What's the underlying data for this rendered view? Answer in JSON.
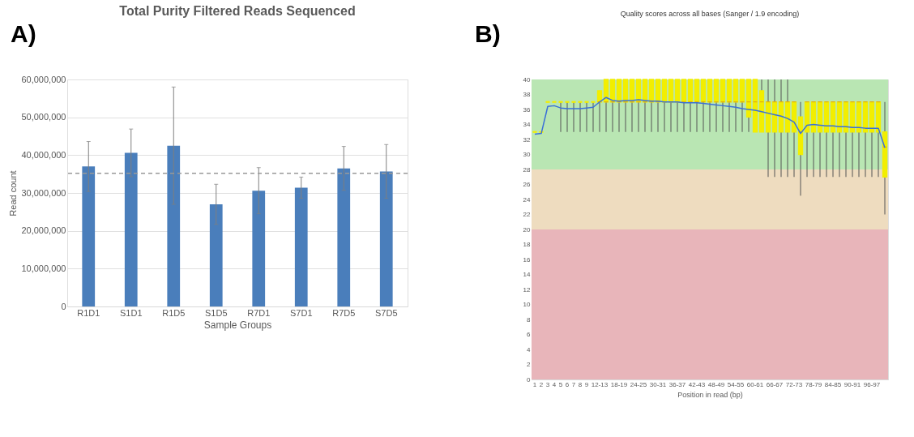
{
  "chart_data": [
    {
      "type": "bar",
      "title": "Total Purity Filtered Reads Sequenced",
      "xlabel": "Sample Groups",
      "ylabel": "Read count",
      "annotations": [
        "A)"
      ],
      "categories": [
        "R1D1",
        "S1D1",
        "R1D5",
        "S1D5",
        "R7D1",
        "S7D1",
        "R7D5",
        "S7D5"
      ],
      "values": [
        37000000,
        40600000,
        42500000,
        27000000,
        30600000,
        31400000,
        36500000,
        35700000
      ],
      "errors": [
        6600000,
        6300000,
        15500000,
        5300000,
        6100000,
        2800000,
        5800000,
        7100000
      ],
      "color": "#4a7ebb",
      "ylim": [
        0,
        60000000
      ],
      "yticks": [
        0,
        {
          "value": 10000000,
          "label": "10,000,000"
        },
        {
          "value": 20000000,
          "label": "20,000,000"
        },
        {
          "value": 30000000,
          "label": "30,000,000"
        },
        {
          "value": 40000000,
          "label": "40,000,000"
        },
        {
          "value": 50000000,
          "label": "50,000,000"
        },
        {
          "value": 60000000,
          "label": "60,000,000"
        }
      ],
      "ref_lines": [
        {
          "axis": "y",
          "value": 35200000,
          "color": "#999999",
          "line_style": "dashed"
        }
      ],
      "grid": "y"
    },
    {
      "type": "box",
      "title": "Quality scores across all bases (Sanger / 1.9 encoding)",
      "xlabel": "Position in read (bp)",
      "annotations": [
        "B)"
      ],
      "categories": [
        "1",
        "2",
        "3",
        "4",
        "5",
        "6",
        "7",
        "8",
        "9",
        null,
        "12-13",
        null,
        null,
        "18-19",
        null,
        null,
        "24-25",
        null,
        null,
        "30-31",
        null,
        null,
        "36-37",
        null,
        null,
        "42-43",
        null,
        null,
        "48-49",
        null,
        null,
        "54-55",
        null,
        null,
        "60-61",
        null,
        null,
        "66-67",
        null,
        null,
        "72-73",
        null,
        null,
        "78-79",
        null,
        null,
        "84-85",
        null,
        null,
        "90-91",
        null,
        null,
        "96-97",
        null,
        null
      ],
      "series": [
        {
          "type": "box",
          "color": "#f2ee00",
          "boxes": [
            {
              "low": 33,
              "q1": 33,
              "median": 33,
              "q3": 33,
              "high": 33
            },
            {
              "low": 33,
              "q1": 33,
              "median": 33,
              "q3": 33,
              "high": 33
            },
            {
              "low": 37,
              "q1": 37,
              "median": 37,
              "q3": 37,
              "high": 37
            },
            {
              "low": 37,
              "q1": 37,
              "median": 37,
              "q3": 37,
              "high": 37
            },
            {
              "low": 33,
              "q1": 37,
              "median": 37,
              "q3": 37,
              "high": 37
            },
            {
              "low": 33,
              "q1": 37,
              "median": 37,
              "q3": 37,
              "high": 37
            },
            {
              "low": 33,
              "q1": 37,
              "median": 37,
              "q3": 37,
              "high": 37
            },
            {
              "low": 33,
              "q1": 37,
              "median": 37,
              "q3": 37,
              "high": 37
            },
            {
              "low": 33,
              "q1": 37,
              "median": 37,
              "q3": 37,
              "high": 37
            },
            {
              "low": 33,
              "q1": 37,
              "median": 37,
              "q3": 37,
              "high": 37
            },
            {
              "low": 33,
              "q1": 37,
              "median": 37,
              "q3": 38.5,
              "high": 38.5
            },
            {
              "low": 33,
              "q1": 37,
              "median": 37,
              "q3": 40,
              "high": 40
            },
            {
              "low": 33,
              "q1": 37,
              "median": 37,
              "q3": 40,
              "high": 40
            },
            {
              "low": 33,
              "q1": 37,
              "median": 37,
              "q3": 40,
              "high": 40
            },
            {
              "low": 33,
              "q1": 37,
              "median": 37,
              "q3": 40,
              "high": 40
            },
            {
              "low": 33,
              "q1": 37,
              "median": 37,
              "q3": 40,
              "high": 40
            },
            {
              "low": 33,
              "q1": 37,
              "median": 37,
              "q3": 40,
              "high": 40
            },
            {
              "low": 33,
              "q1": 37,
              "median": 37,
              "q3": 40,
              "high": 40
            },
            {
              "low": 33,
              "q1": 37,
              "median": 37,
              "q3": 40,
              "high": 40
            },
            {
              "low": 33,
              "q1": 37,
              "median": 37,
              "q3": 40,
              "high": 40
            },
            {
              "low": 33,
              "q1": 37,
              "median": 37,
              "q3": 40,
              "high": 40
            },
            {
              "low": 33,
              "q1": 37,
              "median": 37,
              "q3": 40,
              "high": 40
            },
            {
              "low": 33,
              "q1": 37,
              "median": 37,
              "q3": 40,
              "high": 40
            },
            {
              "low": 33,
              "q1": 37,
              "median": 37,
              "q3": 40,
              "high": 40
            },
            {
              "low": 33,
              "q1": 37,
              "median": 37,
              "q3": 40,
              "high": 40
            },
            {
              "low": 33,
              "q1": 37,
              "median": 37,
              "q3": 40,
              "high": 40
            },
            {
              "low": 33,
              "q1": 37,
              "median": 37,
              "q3": 40,
              "high": 40
            },
            {
              "low": 33,
              "q1": 37,
              "median": 37,
              "q3": 40,
              "high": 40
            },
            {
              "low": 33,
              "q1": 37,
              "median": 37,
              "q3": 40,
              "high": 40
            },
            {
              "low": 33,
              "q1": 37,
              "median": 37,
              "q3": 40,
              "high": 40
            },
            {
              "low": 33,
              "q1": 37,
              "median": 37,
              "q3": 40,
              "high": 40
            },
            {
              "low": 33,
              "q1": 37,
              "median": 37,
              "q3": 40,
              "high": 40
            },
            {
              "low": 33,
              "q1": 37,
              "median": 37,
              "q3": 40,
              "high": 40
            },
            {
              "low": 33,
              "q1": 35,
              "median": 37,
              "q3": 40,
              "high": 40
            },
            {
              "low": 33,
              "q1": 33,
              "median": 37,
              "q3": 40,
              "high": 40
            },
            {
              "low": 33,
              "q1": 33,
              "median": 37,
              "q3": 38.5,
              "high": 40
            },
            {
              "low": 27,
              "q1": 33,
              "median": 37,
              "q3": 37,
              "high": 40
            },
            {
              "low": 27,
              "q1": 33,
              "median": 37,
              "q3": 37,
              "high": 40
            },
            {
              "low": 27,
              "q1": 33,
              "median": 37,
              "q3": 37,
              "high": 40
            },
            {
              "low": 27,
              "q1": 33,
              "median": 37,
              "q3": 37,
              "high": 40
            },
            {
              "low": 27,
              "q1": 33,
              "median": 37,
              "q3": 37,
              "high": 37
            },
            {
              "low": 24.5,
              "q1": 30,
              "median": 33,
              "q3": 35,
              "high": 37
            },
            {
              "low": 27,
              "q1": 33,
              "median": 37,
              "q3": 37,
              "high": 37
            },
            {
              "low": 27,
              "q1": 33,
              "median": 37,
              "q3": 37,
              "high": 37
            },
            {
              "low": 27,
              "q1": 33,
              "median": 37,
              "q3": 37,
              "high": 37
            },
            {
              "low": 27,
              "q1": 33,
              "median": 37,
              "q3": 37,
              "high": 37
            },
            {
              "low": 27,
              "q1": 33,
              "median": 37,
              "q3": 37,
              "high": 37
            },
            {
              "low": 27,
              "q1": 33,
              "median": 37,
              "q3": 37,
              "high": 37
            },
            {
              "low": 27,
              "q1": 33,
              "median": 37,
              "q3": 37,
              "high": 37
            },
            {
              "low": 27,
              "q1": 33,
              "median": 37,
              "q3": 37,
              "high": 37
            },
            {
              "low": 27,
              "q1": 33,
              "median": 37,
              "q3": 37,
              "high": 37
            },
            {
              "low": 27,
              "q1": 33,
              "median": 37,
              "q3": 37,
              "high": 37
            },
            {
              "low": 27,
              "q1": 33,
              "median": 37,
              "q3": 37,
              "high": 37
            },
            {
              "low": 27,
              "q1": 33,
              "median": 37,
              "q3": 37,
              "high": 37
            },
            {
              "low": 22,
              "q1": 27,
              "median": 31,
              "q3": 33,
              "high": 37
            }
          ]
        },
        {
          "type": "line",
          "color": "#3a6fd8",
          "values": [
            32.7,
            32.8,
            36.4,
            36.5,
            36.2,
            36.1,
            36.1,
            36.1,
            36.2,
            36.3,
            37.0,
            37.6,
            37.2,
            37.1,
            37.2,
            37.2,
            37.3,
            37.2,
            37.1,
            37.1,
            37.0,
            37.0,
            37.0,
            36.9,
            36.9,
            36.9,
            36.8,
            36.7,
            36.6,
            36.5,
            36.4,
            36.3,
            36.1,
            36.0,
            35.9,
            35.7,
            35.5,
            35.3,
            35.1,
            34.8,
            34.3,
            32.8,
            33.9,
            34.0,
            33.9,
            33.8,
            33.8,
            33.7,
            33.7,
            33.6,
            33.6,
            33.5,
            33.5,
            33.5,
            30.9
          ]
        }
      ],
      "bands": [
        {
          "axis": "y",
          "from": 28,
          "to": 40,
          "color": "#b9e6b3"
        },
        {
          "axis": "y",
          "from": 20,
          "to": 28,
          "color": "#eedcbf"
        },
        {
          "axis": "y",
          "from": 0,
          "to": 20,
          "color": "#e8b5ba"
        }
      ],
      "ylim": [
        0,
        40
      ],
      "yticks": [
        0,
        2,
        4,
        6,
        8,
        10,
        12,
        14,
        16,
        18,
        20,
        22,
        24,
        26,
        28,
        30,
        32,
        34,
        36,
        38,
        40
      ],
      "grid": false
    }
  ]
}
